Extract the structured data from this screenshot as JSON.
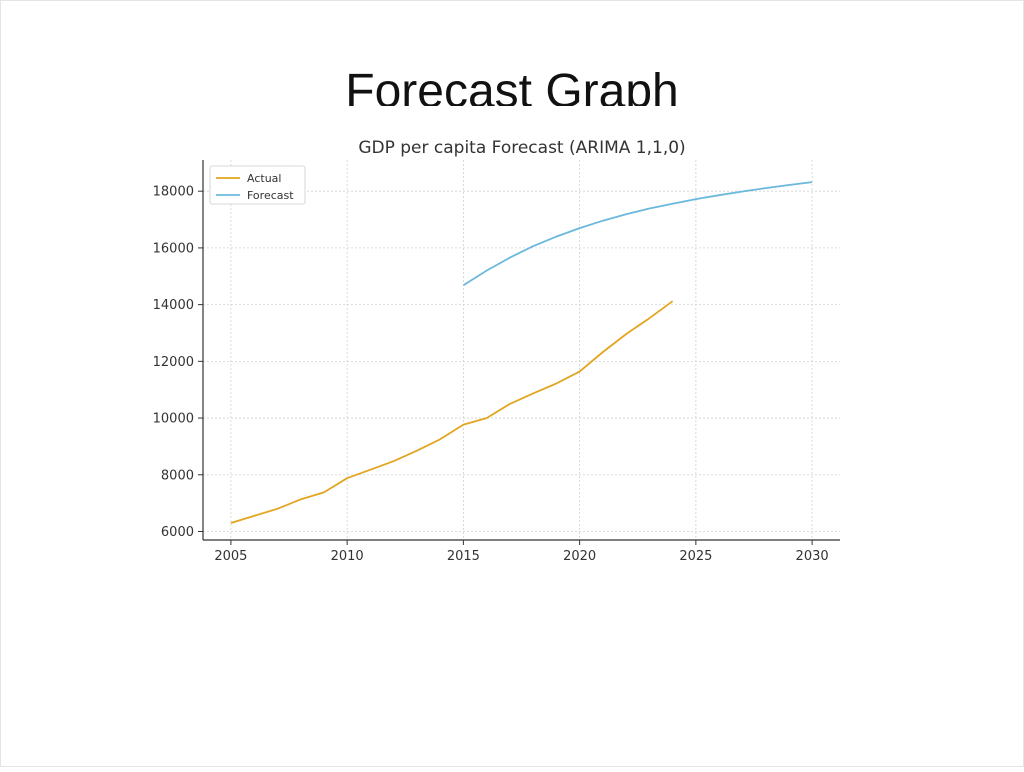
{
  "slide": {
    "title": "Forecast Graph"
  },
  "chart_data": {
    "type": "line",
    "title": "GDP per capita Forecast (ARIMA 1,1,0)",
    "xlabel": "",
    "ylabel": "",
    "xlim": [
      2003.8,
      2031.2
    ],
    "ylim": [
      5700,
      19100
    ],
    "x_ticks": [
      2005,
      2010,
      2015,
      2020,
      2025,
      2030
    ],
    "y_ticks": [
      6000,
      8000,
      10000,
      12000,
      14000,
      16000,
      18000
    ],
    "grid": true,
    "legend": {
      "location": "upper-left",
      "entries": [
        "Actual",
        "Forecast"
      ]
    },
    "series": [
      {
        "name": "Actual",
        "color": "#e3a520",
        "x": [
          2005,
          2006,
          2007,
          2008,
          2009,
          2010,
          2011,
          2012,
          2013,
          2014,
          2015,
          2016,
          2017,
          2018,
          2019,
          2020,
          2021,
          2022,
          2023,
          2024
        ],
        "values": [
          6300,
          6550,
          6800,
          7130,
          7380,
          7880,
          8180,
          8480,
          8850,
          9250,
          9770,
          10000,
          10500,
          10870,
          11220,
          11640,
          12330,
          12960,
          13520,
          14120
        ]
      },
      {
        "name": "Forecast",
        "color": "#6bb8dd",
        "x": [
          2015,
          2016,
          2017,
          2018,
          2019,
          2020,
          2021,
          2022,
          2023,
          2024,
          2025,
          2026,
          2027,
          2028,
          2029,
          2030
        ],
        "values": [
          14680,
          15200,
          15660,
          16060,
          16400,
          16700,
          16960,
          17190,
          17390,
          17560,
          17720,
          17860,
          17990,
          18110,
          18220,
          18320
        ]
      }
    ]
  }
}
